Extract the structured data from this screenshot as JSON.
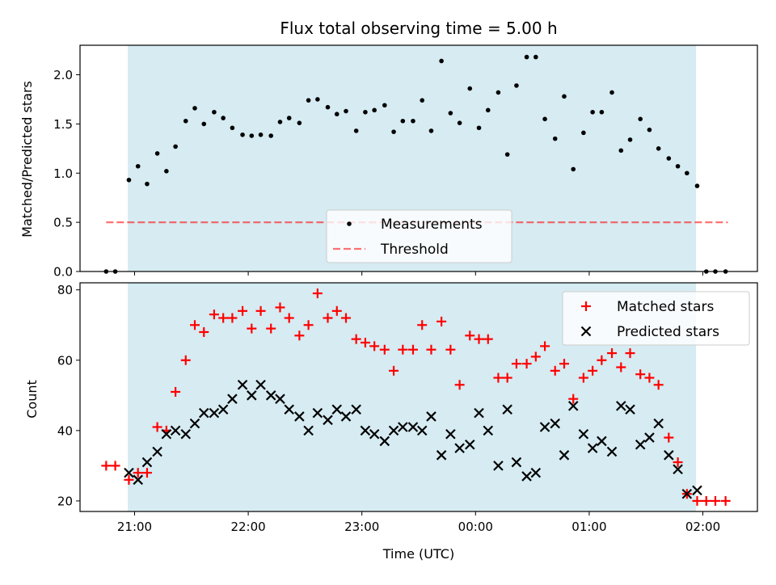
{
  "figure": {
    "title": "Flux total observing time = 5.00 h",
    "xlabel": "Time (UTC)",
    "x_ticks": [
      "21:00",
      "22:00",
      "23:00",
      "00:00",
      "01:00",
      "02:00"
    ]
  },
  "colors": {
    "span": "#add8e6",
    "matched": "#ff0000",
    "predicted": "#000000",
    "threshold": "#ff0000",
    "measurement": "#000000"
  },
  "chart_data": [
    {
      "type": "scatter",
      "ylabel": "Matched/Predicted stars",
      "ylim": [
        0,
        2.3
      ],
      "xlim_hours": [
        20.52,
        26.48
      ],
      "y_ticks": [
        "0.0",
        "0.5",
        "1.0",
        "1.5",
        "2.0"
      ],
      "observing_window_hours": [
        20.94,
        25.94
      ],
      "legend": {
        "position": "bottom-center",
        "entries": [
          "Measurements",
          "Threshold"
        ]
      },
      "threshold": {
        "name": "Threshold",
        "value": 0.5,
        "x_range_hours": [
          20.75,
          26.22
        ]
      },
      "series": [
        {
          "name": "Measurements",
          "x_hours": [
            20.75,
            20.83,
            20.95,
            21.03,
            21.11,
            21.2,
            21.28,
            21.36,
            21.45,
            21.53,
            21.61,
            21.7,
            21.78,
            21.86,
            21.95,
            22.03,
            22.11,
            22.2,
            22.28,
            22.36,
            22.45,
            22.53,
            22.61,
            22.7,
            22.78,
            22.86,
            22.95,
            23.03,
            23.11,
            23.2,
            23.28,
            23.36,
            23.45,
            23.53,
            23.61,
            23.7,
            23.78,
            23.86,
            23.95,
            24.03,
            24.11,
            24.2,
            24.28,
            24.36,
            24.45,
            24.53,
            24.61,
            24.7,
            24.78,
            24.86,
            24.95,
            25.03,
            25.11,
            25.2,
            25.28,
            25.36,
            25.45,
            25.53,
            25.61,
            25.7,
            25.78,
            25.86,
            25.95,
            26.03,
            26.11,
            26.2
          ],
          "y": [
            0,
            0,
            0.93,
            1.07,
            0.89,
            1.2,
            1.02,
            1.27,
            1.53,
            1.66,
            1.5,
            1.62,
            1.56,
            1.46,
            1.39,
            1.38,
            1.39,
            1.38,
            1.52,
            1.56,
            1.51,
            1.74,
            1.75,
            1.67,
            1.6,
            1.63,
            1.43,
            1.62,
            1.64,
            1.69,
            1.42,
            1.53,
            1.53,
            1.74,
            1.43,
            2.14,
            1.61,
            1.51,
            1.86,
            1.46,
            1.64,
            1.82,
            1.19,
            1.89,
            2.18,
            2.18,
            1.55,
            1.35,
            1.78,
            1.04,
            1.41,
            1.62,
            1.62,
            1.82,
            1.23,
            1.34,
            1.55,
            1.44,
            1.25,
            1.15,
            1.07,
            1.0,
            0.87,
            0,
            0,
            0
          ]
        }
      ]
    },
    {
      "type": "scatter",
      "ylabel": "Count",
      "ylim": [
        17,
        82
      ],
      "y_ticks": [
        "20",
        "40",
        "60",
        "80"
      ],
      "legend": {
        "position": "top-right",
        "entries": [
          "Matched stars",
          "Predicted stars"
        ]
      },
      "series": [
        {
          "name": "Matched stars",
          "marker": "+",
          "x_hours": [
            20.75,
            20.83,
            20.95,
            21.03,
            21.11,
            21.2,
            21.28,
            21.36,
            21.45,
            21.53,
            21.61,
            21.7,
            21.78,
            21.86,
            21.95,
            22.03,
            22.11,
            22.2,
            22.28,
            22.36,
            22.45,
            22.53,
            22.61,
            22.7,
            22.78,
            22.86,
            22.95,
            23.03,
            23.11,
            23.2,
            23.28,
            23.36,
            23.45,
            23.53,
            23.61,
            23.7,
            23.78,
            23.86,
            23.95,
            24.03,
            24.11,
            24.2,
            24.28,
            24.36,
            24.45,
            24.53,
            24.61,
            24.7,
            24.78,
            24.86,
            24.95,
            25.03,
            25.11,
            25.2,
            25.28,
            25.36,
            25.45,
            25.53,
            25.61,
            25.7,
            25.78,
            25.86,
            25.95,
            26.03,
            26.11,
            26.2
          ],
          "y": [
            30,
            30,
            26,
            28,
            28,
            41,
            40,
            51,
            60,
            70,
            68,
            73,
            72,
            72,
            74,
            69,
            74,
            69,
            75,
            72,
            67,
            70,
            79,
            72,
            74,
            72,
            66,
            65,
            64,
            63,
            57,
            63,
            63,
            70,
            63,
            71,
            63,
            53,
            67,
            66,
            66,
            55,
            55,
            59,
            59,
            61,
            64,
            57,
            59,
            49,
            55,
            57,
            60,
            62,
            58,
            62,
            56,
            55,
            53,
            38,
            31,
            22,
            20,
            20,
            20,
            20
          ]
        },
        {
          "name": "Predicted stars",
          "marker": "x",
          "x_hours": [
            20.95,
            21.03,
            21.11,
            21.2,
            21.28,
            21.36,
            21.45,
            21.53,
            21.61,
            21.7,
            21.78,
            21.86,
            21.95,
            22.03,
            22.11,
            22.2,
            22.28,
            22.36,
            22.45,
            22.53,
            22.61,
            22.7,
            22.78,
            22.86,
            22.95,
            23.03,
            23.11,
            23.2,
            23.28,
            23.36,
            23.45,
            23.53,
            23.61,
            23.7,
            23.78,
            23.86,
            23.95,
            24.03,
            24.11,
            24.2,
            24.28,
            24.36,
            24.45,
            24.53,
            24.61,
            24.7,
            24.78,
            24.86,
            24.95,
            25.03,
            25.11,
            25.2,
            25.28,
            25.36,
            25.45,
            25.53,
            25.61,
            25.7,
            25.78,
            25.86,
            25.95
          ],
          "y": [
            28,
            26,
            31,
            34,
            39,
            40,
            39,
            42,
            45,
            45,
            46,
            49,
            53,
            50,
            53,
            50,
            49,
            46,
            44,
            40,
            45,
            43,
            46,
            44,
            46,
            40,
            39,
            37,
            40,
            41,
            41,
            40,
            44,
            33,
            39,
            35,
            36,
            45,
            40,
            30,
            46,
            31,
            27,
            28,
            41,
            42,
            33,
            47,
            39,
            35,
            37,
            34,
            47,
            46,
            36,
            38,
            42,
            33,
            29,
            22,
            23
          ]
        }
      ]
    }
  ]
}
